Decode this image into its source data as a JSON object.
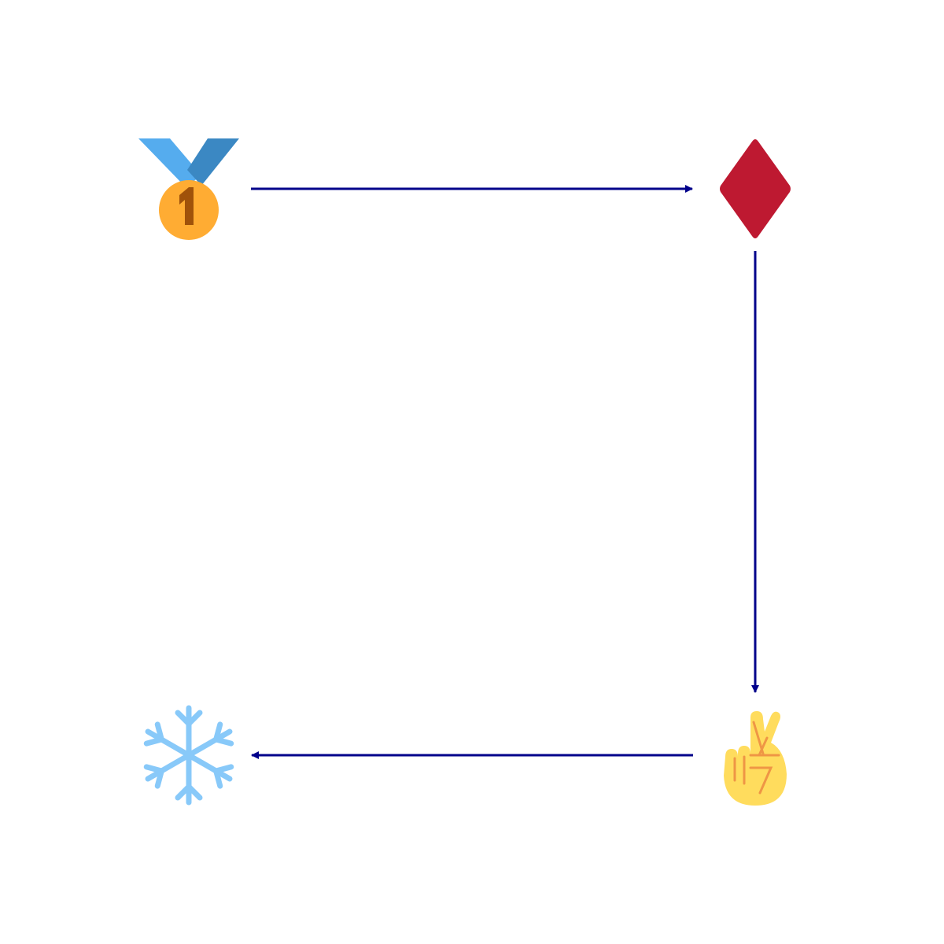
{
  "diagram": {
    "nodes": [
      {
        "id": "medal",
        "icon": "first-place-medal-icon"
      },
      {
        "id": "diamond",
        "icon": "diamond-suit-icon"
      },
      {
        "id": "fingers",
        "icon": "crossed-fingers-icon"
      },
      {
        "id": "snowflake",
        "icon": "snowflake-icon"
      }
    ],
    "edges": [
      {
        "from": "medal",
        "to": "diamond"
      },
      {
        "from": "diamond",
        "to": "fingers"
      },
      {
        "from": "fingers",
        "to": "snowflake"
      }
    ],
    "colors": {
      "arrow": "#00008B",
      "medal_ribbon_light": "#55ACEE",
      "medal_ribbon_dark": "#3B88C3",
      "medal_gold": "#FFAC33",
      "medal_text": "#A0520A",
      "diamond": "#BE1931",
      "hand": "#FFDC5D",
      "hand_line": "#EF9645",
      "snowflake": "#88C9F9"
    }
  }
}
